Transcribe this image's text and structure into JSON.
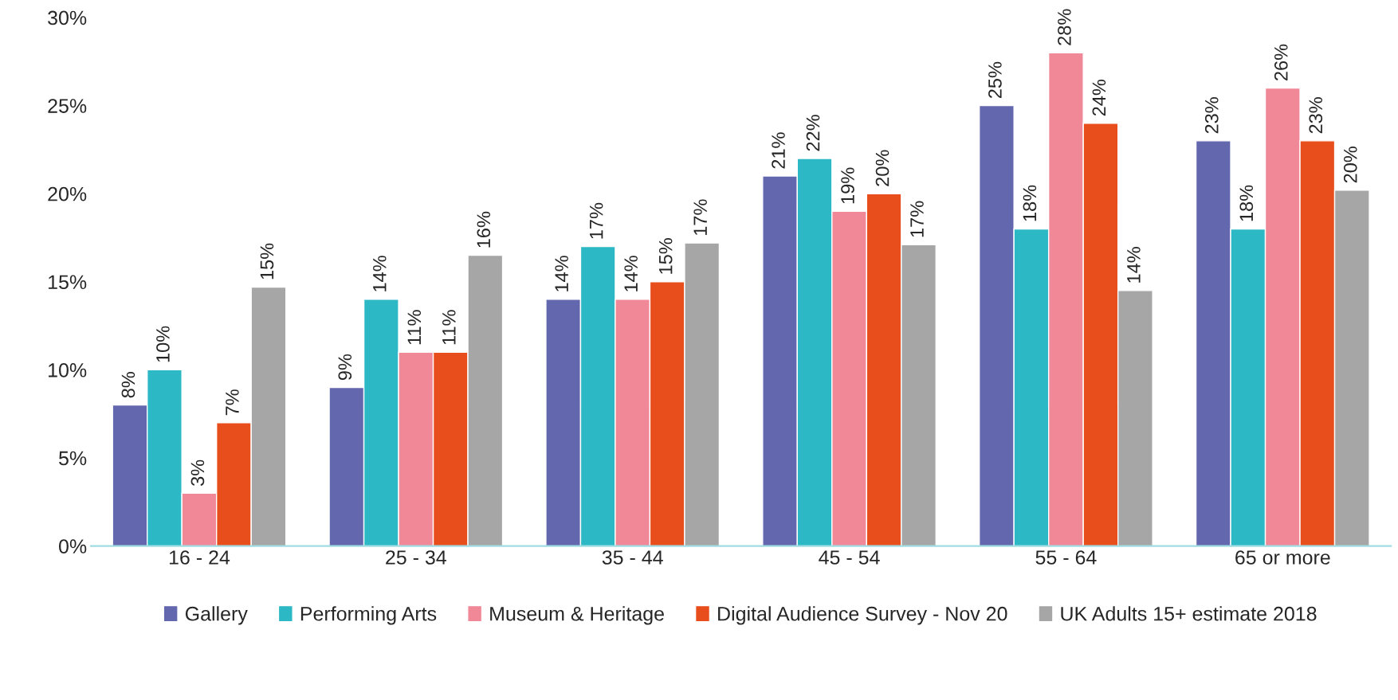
{
  "chart_data": {
    "type": "bar",
    "categories": [
      "16 - 24",
      "25 - 34",
      "35 - 44",
      "45 - 54",
      "55 - 64",
      "65 or more"
    ],
    "series": [
      {
        "name": "Gallery",
        "color": "#6367ad",
        "values": [
          8,
          9,
          14,
          21,
          25,
          23
        ],
        "value_labels": [
          "8%",
          "9%",
          "14%",
          "21%",
          "25%",
          "23%"
        ]
      },
      {
        "name": "Performing Arts",
        "color": "#2cb8c5",
        "values": [
          10,
          14,
          17,
          22,
          18,
          18
        ],
        "value_labels": [
          "10%",
          "14%",
          "17%",
          "22%",
          "18%",
          "18%"
        ]
      },
      {
        "name": "Museum & Heritage",
        "color": "#f08898",
        "values": [
          3,
          11,
          14,
          19,
          28,
          26
        ],
        "value_labels": [
          "3%",
          "11%",
          "14%",
          "19%",
          "28%",
          "26%"
        ]
      },
      {
        "name": "Digital Audience Survey - Nov 20",
        "color": "#e84e1c",
        "values": [
          7,
          11,
          15,
          20,
          24,
          23
        ],
        "value_labels": [
          "7%",
          "11%",
          "15%",
          "20%",
          "24%",
          "23%"
        ]
      },
      {
        "name": "UK Adults 15+ estimate 2018",
        "color": "#a6a6a6",
        "values": [
          14.7,
          16.5,
          17.2,
          17.1,
          14.5,
          20.2
        ],
        "value_labels": [
          "15%",
          "16%",
          "17%",
          "17%",
          "14%",
          "20%"
        ]
      }
    ],
    "ylim": [
      0,
      30
    ],
    "yticks": [
      {
        "value": 0,
        "label": "0%"
      },
      {
        "value": 5,
        "label": "5%"
      },
      {
        "value": 10,
        "label": "10%"
      },
      {
        "value": 15,
        "label": "15%"
      },
      {
        "value": 20,
        "label": "20%"
      },
      {
        "value": 25,
        "label": "25%"
      },
      {
        "value": 30,
        "label": "30%"
      }
    ],
    "grid": false,
    "legend": "bottom"
  }
}
